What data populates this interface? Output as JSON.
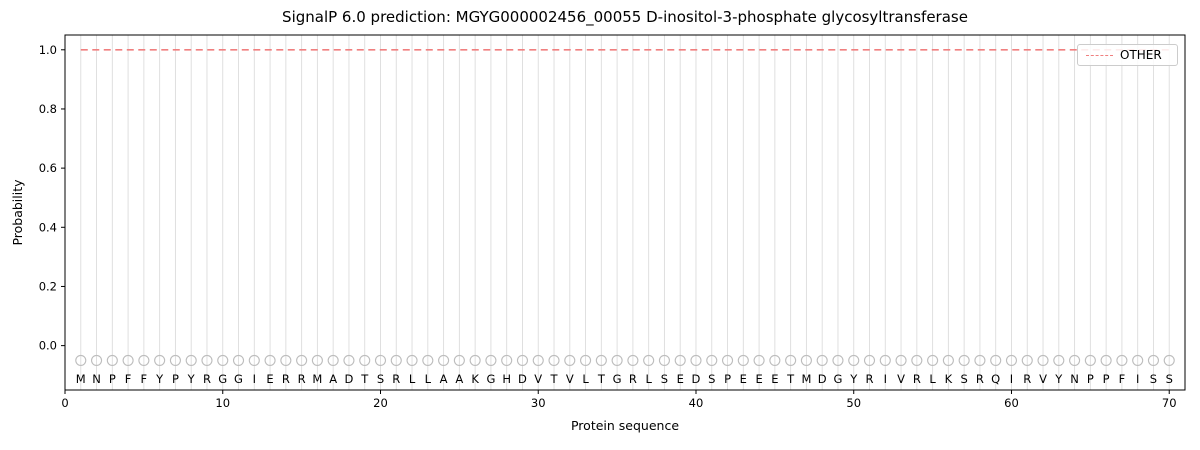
{
  "figure": {
    "title": "SignalP 6.0 prediction: MGYG000002456_00055 D-inositol-3-phosphate glycosyltransferase",
    "xlabel": "Protein sequence",
    "ylabel": "Probability"
  },
  "legend": {
    "label": "OTHER"
  },
  "chart_data": {
    "type": "line",
    "title": "SignalP 6.0 prediction: MGYG000002456_00055 D-inositol-3-phosphate glycosyltransferase",
    "xlabel": "Protein sequence",
    "ylabel": "Probability",
    "xlim": [
      0,
      71
    ],
    "ylim": [
      -0.15,
      1.05
    ],
    "x_ticks": [
      0,
      10,
      20,
      30,
      40,
      50,
      60,
      70
    ],
    "y_ticks": [
      0.0,
      0.2,
      0.4,
      0.6,
      0.8,
      1.0
    ],
    "grid": "vertical gridline at every residue position 1-70",
    "legend_position": "upper right",
    "series": [
      {
        "name": "OTHER",
        "style": "dashed",
        "color": "#f07f7f",
        "x_range": [
          1,
          70
        ],
        "constant_value": 1.0,
        "note": "flat dashed line at probability 1.0 across all 70 positions"
      }
    ],
    "sequence": "MNPFFYPYRGGIERRMADTSRLLAAKGHDVTVLTGRLSEDSPEEETMDGYRIVRLKSRQIRVYNPPFISS",
    "sequence_length": 70,
    "marker_y": -0.05,
    "letter_y": -0.11,
    "colors": {
      "line": "#f07f7f",
      "grid": "#dcdcdc",
      "marker": "#bdbdbd",
      "spine": "#000000",
      "text": "#000000"
    }
  }
}
